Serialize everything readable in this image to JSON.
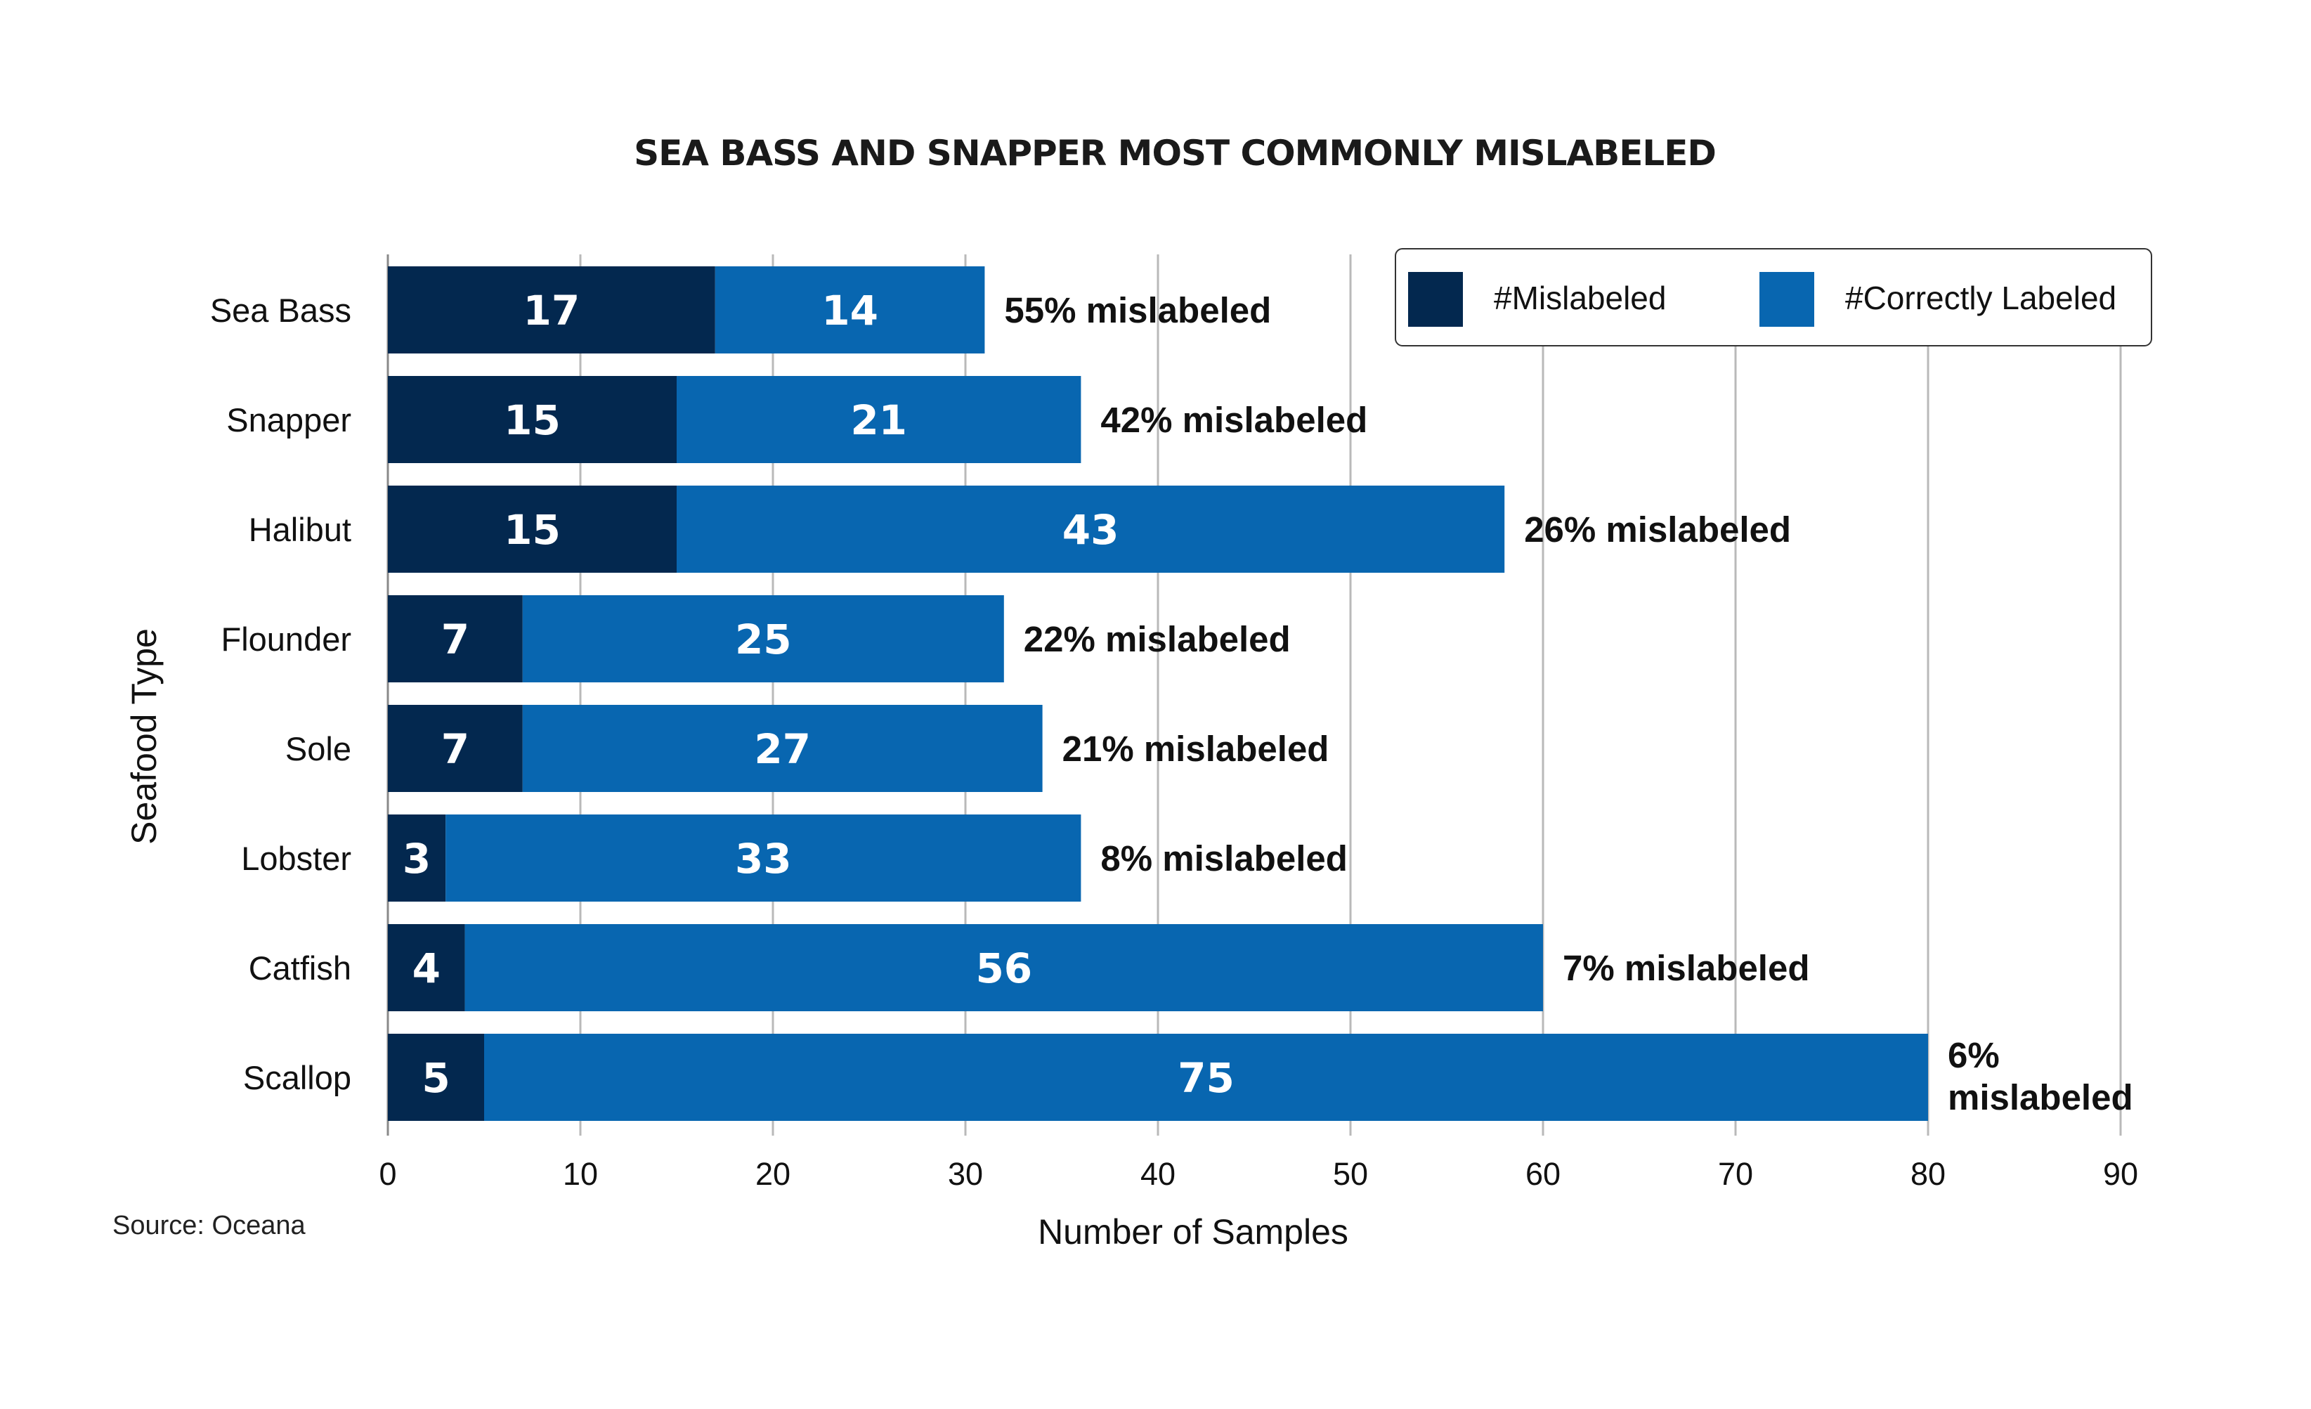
{
  "chart_data": {
    "type": "bar",
    "orientation": "horizontal",
    "stacked": true,
    "title": "SEA BASS AND SNAPPER MOST COMMONLY MISLABELED",
    "xlabel": "Number of Samples",
    "ylabel": "Seafood Type",
    "categories": [
      "Sea Bass",
      "Snapper",
      "Halibut",
      "Flounder",
      "Sole",
      "Lobster",
      "Catfish",
      "Scallop"
    ],
    "series": [
      {
        "name": "#Mislabeled",
        "color": "#03284f",
        "values": [
          17,
          15,
          15,
          7,
          7,
          3,
          4,
          5
        ]
      },
      {
        "name": "#Correctly Labeled",
        "color": "#0866b0",
        "values": [
          14,
          21,
          43,
          25,
          27,
          33,
          56,
          75
        ]
      }
    ],
    "annotations": [
      "55% mislabeled",
      "42% mislabeled",
      "26% mislabeled",
      "22% mislabeled",
      "21% mislabeled",
      "8% mislabeled",
      "7% mislabeled",
      "6% mislabeled"
    ],
    "xlim": [
      0,
      90
    ],
    "xticks": [
      0,
      10,
      20,
      30,
      40,
      50,
      60,
      70,
      80,
      90
    ],
    "grid": "vertical",
    "legend": "top-right",
    "source": "Source: Oceana"
  }
}
